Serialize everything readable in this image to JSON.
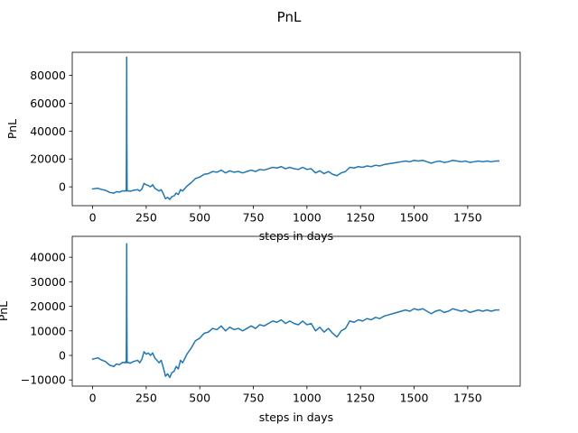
{
  "figure": {
    "title": "PnL"
  },
  "colors": {
    "series": "#1f77b4",
    "background": "#ffffff",
    "axes": "#000000"
  },
  "chart_data": [
    {
      "type": "line",
      "title": "",
      "xlabel": "steps in days",
      "ylabel": "PnL",
      "xlim": [
        -95,
        1995
      ],
      "ylim": [
        -13500,
        96500
      ],
      "grid": false,
      "xticks": [
        0,
        250,
        500,
        750,
        1000,
        1250,
        1500,
        1750
      ],
      "xtick_labels": [
        "0",
        "250",
        "500",
        "750",
        "1000",
        "1250",
        "1500",
        "1750"
      ],
      "yticks": [
        0,
        20000,
        40000,
        60000,
        80000
      ],
      "ytick_labels": [
        "0",
        "20000",
        "40000",
        "60000",
        "80000"
      ],
      "series": [
        {
          "x": [
            0,
            25,
            40,
            60,
            80,
            100,
            110,
            125,
            140,
            150,
            155,
            157,
            158,
            159,
            160,
            161,
            162,
            165,
            175,
            190,
            210,
            220,
            230,
            240,
            250,
            260,
            270,
            280,
            290,
            300,
            310,
            320,
            330,
            340,
            350,
            360,
            370,
            380,
            390,
            400,
            410,
            420,
            440,
            460,
            480,
            500,
            520,
            540,
            560,
            580,
            600,
            620,
            640,
            660,
            680,
            700,
            720,
            740,
            760,
            780,
            800,
            820,
            840,
            860,
            880,
            900,
            920,
            940,
            960,
            980,
            1000,
            1020,
            1040,
            1060,
            1080,
            1100,
            1120,
            1140,
            1160,
            1180,
            1200,
            1220,
            1240,
            1260,
            1280,
            1300,
            1320,
            1340,
            1360,
            1380,
            1400,
            1420,
            1440,
            1460,
            1480,
            1500,
            1520,
            1540,
            1560,
            1580,
            1600,
            1620,
            1640,
            1660,
            1680,
            1700,
            1720,
            1740,
            1760,
            1780,
            1800,
            1820,
            1840,
            1860,
            1880,
            1895
          ],
          "y": [
            -1500,
            -1000,
            -1800,
            -2500,
            -4000,
            -4500,
            -3500,
            -3800,
            -2800,
            -3000,
            -2500,
            -3000,
            30000,
            93000,
            30000,
            -2500,
            -3000,
            -2800,
            -3200,
            -2500,
            -2000,
            -3000,
            -1500,
            2500,
            1500,
            1000,
            0,
            1500,
            -1000,
            -2000,
            -3000,
            -2000,
            -5000,
            -8500,
            -7500,
            -9000,
            -7000,
            -6500,
            -4500,
            -5500,
            -2000,
            -3000,
            500,
            3000,
            6000,
            7000,
            9000,
            9500,
            11000,
            10500,
            12000,
            10000,
            11500,
            10500,
            11000,
            10000,
            11000,
            12000,
            11000,
            12500,
            12000,
            13000,
            14000,
            13500,
            14500,
            13000,
            14000,
            13000,
            12500,
            14000,
            12500,
            13000,
            10000,
            11500,
            9500,
            11000,
            9000,
            8000,
            10000,
            11000,
            14000,
            13500,
            14500,
            14000,
            15000,
            14500,
            15500,
            15000,
            16000,
            16500,
            17000,
            17500,
            18000,
            18500,
            18000,
            19000,
            18500,
            19000,
            18000,
            17000,
            18000,
            18500,
            17500,
            18000,
            19000,
            18500,
            18000,
            18500,
            17500,
            18000,
            18500,
            18000,
            18500,
            18000,
            18500,
            18500
          ]
        }
      ]
    },
    {
      "type": "line",
      "title": "",
      "xlabel": "steps in days",
      "ylabel": "PnL",
      "xlim": [
        -95,
        1995
      ],
      "ylim": [
        -12500,
        48500
      ],
      "grid": false,
      "xticks": [
        0,
        250,
        500,
        750,
        1000,
        1250,
        1500,
        1750
      ],
      "xtick_labels": [
        "0",
        "250",
        "500",
        "750",
        "1000",
        "1250",
        "1500",
        "1750"
      ],
      "yticks": [
        -10000,
        0,
        10000,
        20000,
        30000,
        40000
      ],
      "ytick_labels": [
        "−10000",
        "0",
        "10000",
        "20000",
        "30000",
        "40000"
      ],
      "series": [
        {
          "x": [
            0,
            25,
            40,
            60,
            80,
            100,
            110,
            125,
            140,
            150,
            155,
            157,
            158,
            159,
            160,
            161,
            162,
            165,
            175,
            190,
            210,
            220,
            230,
            240,
            250,
            260,
            270,
            280,
            290,
            300,
            310,
            320,
            330,
            340,
            350,
            360,
            370,
            380,
            390,
            400,
            410,
            420,
            440,
            460,
            480,
            500,
            520,
            540,
            560,
            580,
            600,
            620,
            640,
            660,
            680,
            700,
            720,
            740,
            760,
            780,
            800,
            820,
            840,
            860,
            880,
            900,
            920,
            940,
            960,
            980,
            1000,
            1020,
            1040,
            1060,
            1080,
            1100,
            1120,
            1140,
            1160,
            1180,
            1200,
            1220,
            1240,
            1260,
            1280,
            1300,
            1320,
            1340,
            1360,
            1380,
            1400,
            1420,
            1440,
            1460,
            1480,
            1500,
            1520,
            1540,
            1560,
            1580,
            1600,
            1620,
            1640,
            1660,
            1680,
            1700,
            1720,
            1740,
            1760,
            1780,
            1800,
            1820,
            1840,
            1860,
            1880,
            1895
          ],
          "y": [
            -1500,
            -1000,
            -1800,
            -2500,
            -4000,
            -4500,
            -3500,
            -3800,
            -2800,
            -3000,
            -2500,
            -3000,
            15000,
            45500,
            15000,
            -2500,
            -3000,
            -2800,
            -3200,
            -2500,
            -2000,
            -3000,
            -1500,
            1500,
            500,
            1000,
            0,
            1000,
            -1000,
            -2000,
            -3000,
            -2000,
            -5000,
            -8500,
            -7500,
            -9000,
            -7000,
            -6500,
            -4500,
            -5500,
            -2000,
            -3000,
            500,
            3000,
            6000,
            7000,
            9000,
            9500,
            11000,
            10500,
            12000,
            10000,
            11500,
            10500,
            11000,
            10000,
            11000,
            12000,
            11000,
            12500,
            12000,
            13000,
            14000,
            13500,
            14500,
            13000,
            14000,
            13000,
            12500,
            14000,
            12500,
            13000,
            10000,
            11500,
            9500,
            11000,
            9000,
            7500,
            10000,
            11000,
            14000,
            13500,
            14500,
            14000,
            15000,
            14500,
            15500,
            15000,
            16000,
            16500,
            17000,
            17500,
            18000,
            18500,
            18000,
            19000,
            18500,
            19000,
            18000,
            17000,
            18000,
            18500,
            17500,
            18000,
            19000,
            18500,
            18000,
            18500,
            17500,
            18000,
            18500,
            18000,
            18500,
            18000,
            18500,
            18500
          ]
        }
      ]
    }
  ]
}
